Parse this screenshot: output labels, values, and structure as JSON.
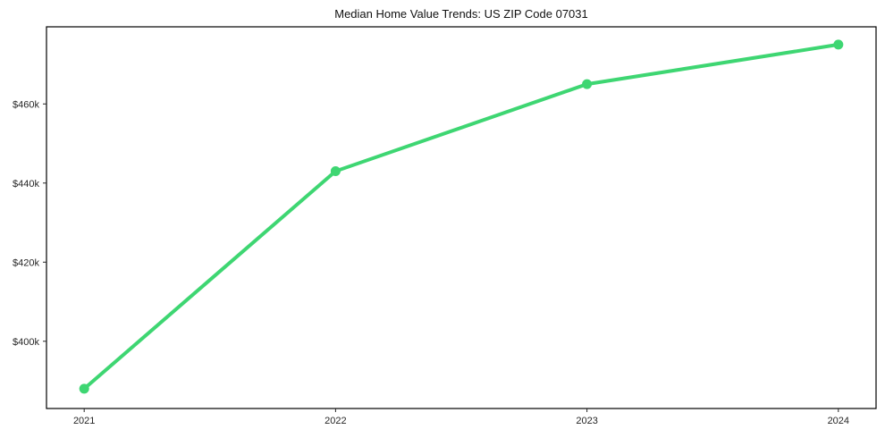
{
  "figure": {
    "background": "#ffffff"
  },
  "chart_data": {
    "type": "line",
    "title": "Median Home Value Trends: US ZIP Code 07031",
    "series_name": "Median home value",
    "x": [
      2021,
      2022,
      2023,
      2024
    ],
    "values": [
      388000,
      443000,
      465000,
      475000
    ],
    "xtick_labels": [
      "2021",
      "2022",
      "2023",
      "2024"
    ],
    "yticks": [
      400000,
      420000,
      440000,
      460000
    ],
    "ytick_labels": [
      "$400k",
      "$420k",
      "$440k",
      "$460k"
    ],
    "xlim": [
      2020.85,
      2024.15
    ],
    "ylim": [
      383000,
      479500
    ],
    "grid": false,
    "legend_position": "none",
    "line_color": "#3ed672",
    "marker": "circle",
    "axis_color": "#000000",
    "tick_label_color": "#262626",
    "title_color": "#111111"
  }
}
